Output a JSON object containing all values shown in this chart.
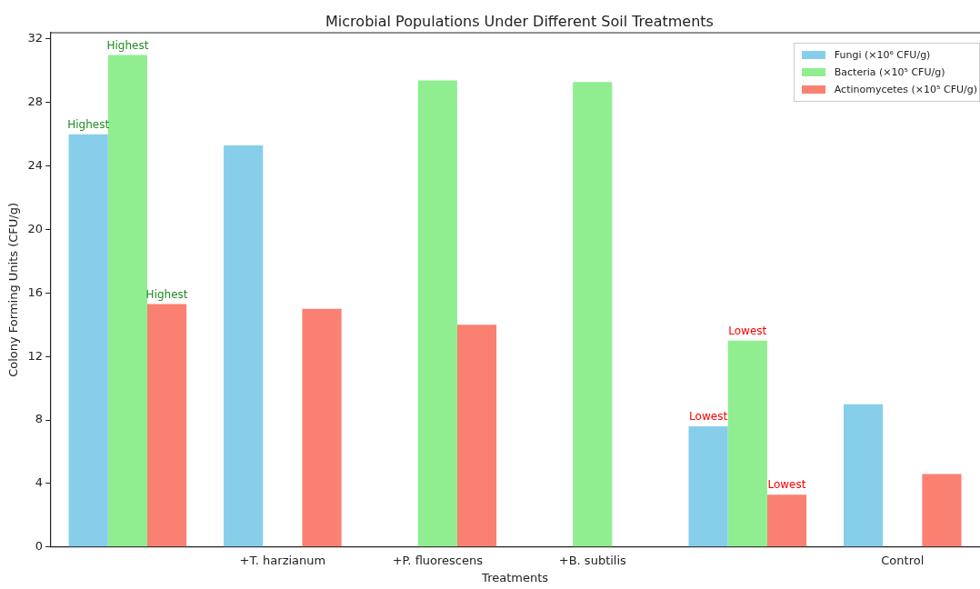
{
  "chart_data": {
    "type": "bar",
    "title": "Microbial Populations Under Different Soil Treatments",
    "xlabel": "Treatments",
    "ylabel": "Colony Forming Units (CFU/g)",
    "categories": [
      null,
      "+T. harzianum",
      "+P. fluorescens",
      "+B. subtilis",
      null,
      "Control"
    ],
    "series": [
      {
        "name": "Fungi (×10⁶ CFU/g)",
        "color": "#87ceeb",
        "values": [
          26,
          25.3,
          null,
          null,
          7.6,
          9
        ],
        "value_labels": [
          "Highest",
          null,
          null,
          null,
          "Lowest",
          null
        ]
      },
      {
        "name": "Bacteria (×10⁵ CFU/g)",
        "color": "#90ee90",
        "values": [
          31,
          null,
          29.4,
          29.3,
          13,
          null
        ],
        "value_labels": [
          "Highest",
          null,
          null,
          null,
          "Lowest",
          null
        ]
      },
      {
        "name": "Actinomycetes (×10⁵ CFU/g)",
        "color": "#fa8072",
        "values": [
          15.3,
          15,
          14,
          null,
          3.3,
          4.6
        ],
        "value_labels": [
          "Highest",
          null,
          null,
          null,
          "Lowest",
          null
        ]
      }
    ],
    "ylim": [
      0,
      32.4
    ],
    "yticks": [
      0,
      4,
      8,
      12,
      16,
      20,
      24,
      28,
      32
    ],
    "grid": false,
    "legend": "top right"
  }
}
